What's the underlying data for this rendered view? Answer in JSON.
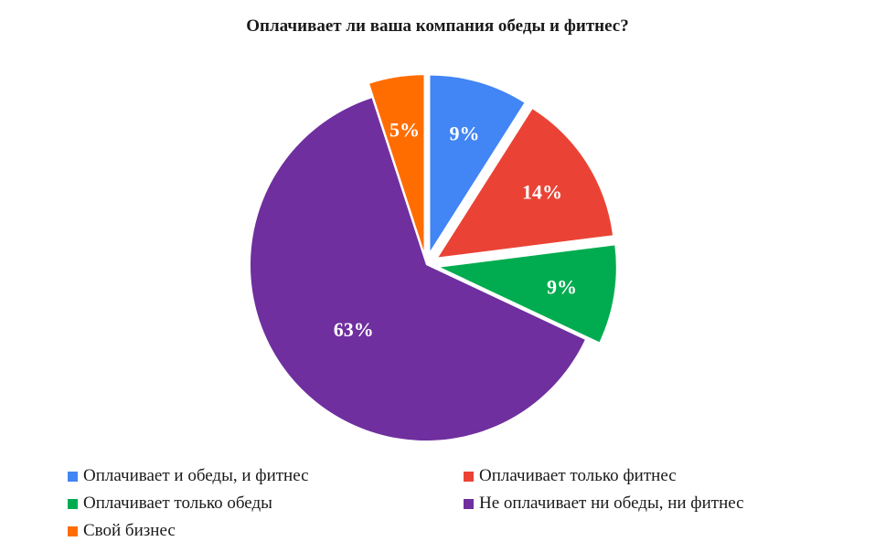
{
  "chart_data": {
    "type": "pie",
    "title": "Оплачивает ли ваша компания обеды и фитнес?",
    "categories": [
      "Оплачивает и обеды, и фитнес",
      "Оплачивает только фитнес",
      "Оплачивает только обеды",
      "Не оплачивает ни обеды, ни фитнес",
      "Свой бизнес"
    ],
    "values": [
      9,
      14,
      9,
      63,
      5
    ],
    "labels": [
      "9%",
      "14%",
      "9%",
      "63%",
      "5%"
    ],
    "colors": [
      "#4285f4",
      "#ea4335",
      "#00ac4f",
      "#6f2f9f",
      "#ff6d01"
    ],
    "exploded": [
      true,
      true,
      true,
      false,
      true
    ],
    "start_angle": "top (12 o'clock), clockwise",
    "legend_position": "bottom"
  },
  "legend": {
    "items": [
      {
        "label": "Оплачивает и обеды, и фитнес",
        "color": "#4285f4"
      },
      {
        "label": "Оплачивает только фитнес",
        "color": "#ea4335"
      },
      {
        "label": "Оплачивает только обеды",
        "color": "#00ac4f"
      },
      {
        "label": "Не оплачивает ни обеды, ни фитнес",
        "color": "#6f2f9f"
      },
      {
        "label": "Свой бизнес",
        "color": "#ff6d01"
      }
    ]
  }
}
